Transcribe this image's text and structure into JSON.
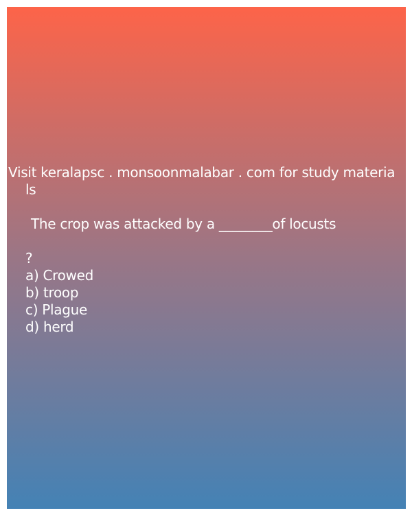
{
  "colors": {
    "gradient_top": "#fd6449",
    "gradient_mid": "#9a7686",
    "gradient_bottom": "#4482b5",
    "text": "#ffffff"
  },
  "header": {
    "line1": "Visit keralapsc . monsoonmalabar . com for study materia",
    "line2": "ls"
  },
  "question": {
    "text": "The crop was attacked by a ________of locusts",
    "mark": "?"
  },
  "options": [
    "a) Crowed",
    "b) troop",
    "c) Plague",
    "d) herd"
  ]
}
